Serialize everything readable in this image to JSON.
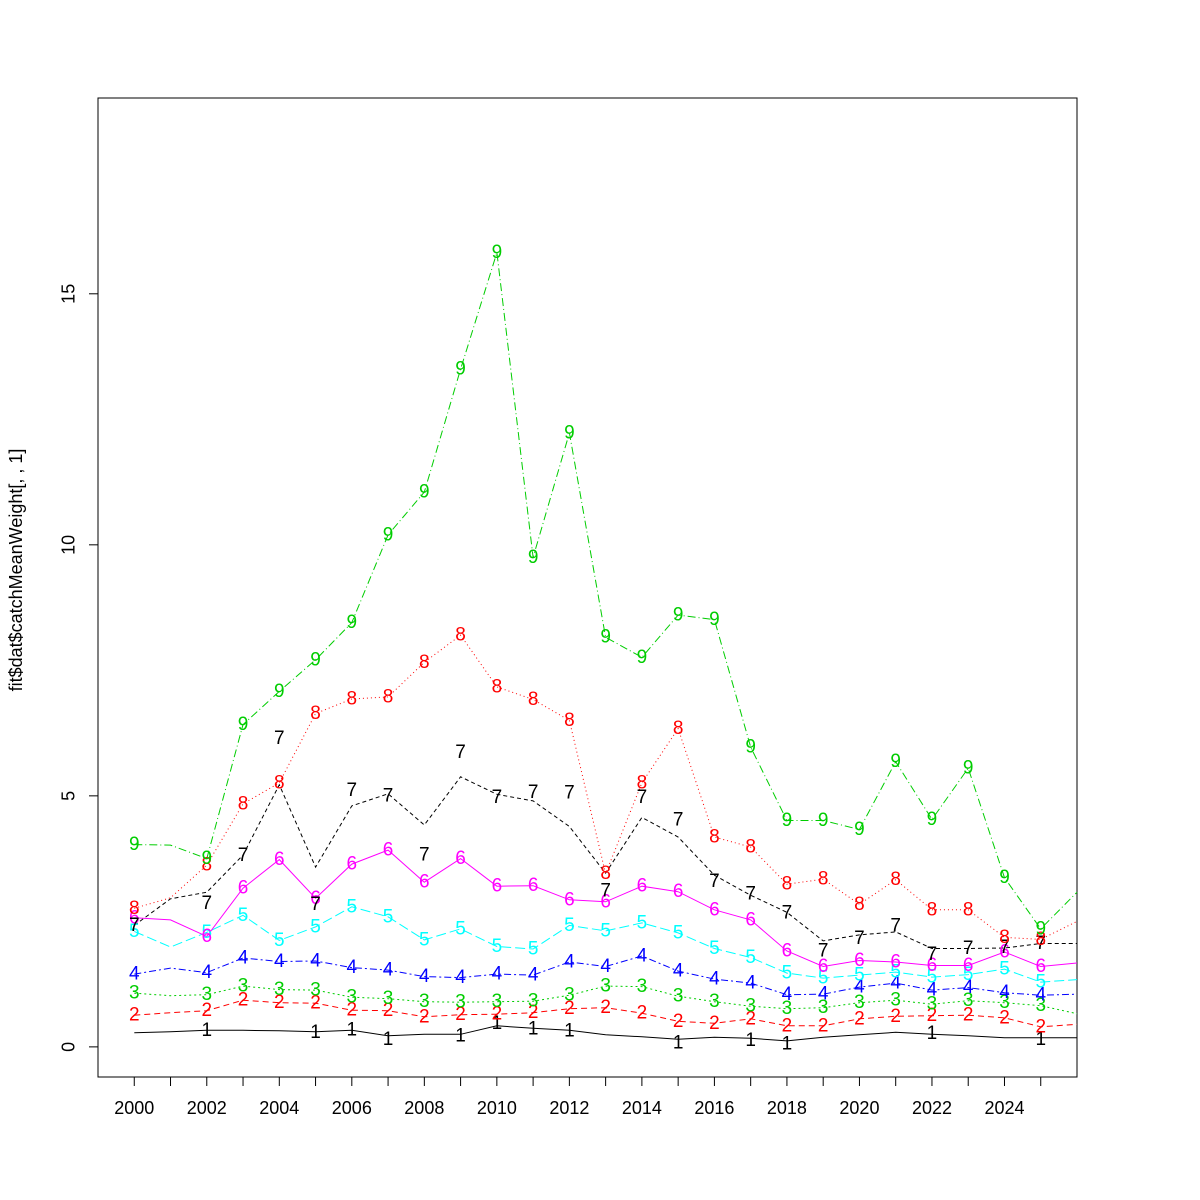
{
  "chart_data": {
    "type": "line",
    "title": "",
    "xlabel": "",
    "ylabel": "fit$dat$catchMeanWeight[, , 1]",
    "xlim": [
      1999.0,
      2026.0
    ],
    "ylim": [
      -0.6,
      18.9
    ],
    "xticks": [
      2000,
      2001,
      2002,
      2003,
      2004,
      2005,
      2006,
      2007,
      2008,
      2009,
      2010,
      2011,
      2012,
      2013,
      2014,
      2015,
      2016,
      2017,
      2018,
      2019,
      2020,
      2021,
      2022,
      2023,
      2024,
      2025
    ],
    "xtick_labels": [
      "2000",
      "",
      "2002",
      "",
      "2004",
      "",
      "2006",
      "",
      "2008",
      "",
      "2010",
      "",
      "2012",
      "",
      "2014",
      "",
      "2016",
      "",
      "2018",
      "",
      "2020",
      "",
      "2022",
      "",
      "2024",
      ""
    ],
    "yticks": [
      0,
      5,
      10,
      15
    ],
    "ytick_labels": [
      "0",
      "5",
      "10",
      "15"
    ],
    "grid": false,
    "line_years": [
      2000,
      2001,
      2002,
      2003,
      2004,
      2005,
      2006,
      2007,
      2008,
      2009,
      2010,
      2011,
      2012,
      2013,
      2014,
      2015,
      2016,
      2017,
      2018,
      2019,
      2020,
      2021,
      2022,
      2023,
      2024,
      2025,
      2026
    ],
    "point_years": [
      2000,
      2002,
      2003,
      2004,
      2005,
      2006,
      2007,
      2008,
      2009,
      2010,
      2011,
      2012,
      2013,
      2014,
      2015,
      2016,
      2017,
      2018,
      2019,
      2020,
      2021,
      2022,
      2023,
      2024,
      2025
    ],
    "series": [
      {
        "name": "1",
        "color": "#000000",
        "dash": "",
        "line": [
          0.28,
          0.3,
          0.33,
          0.33,
          0.32,
          0.3,
          0.33,
          0.22,
          0.25,
          0.25,
          0.42,
          0.37,
          0.33,
          0.24,
          0.2,
          0.15,
          0.19,
          0.17,
          0.12,
          0.19,
          0.24,
          0.29,
          0.25,
          0.22,
          0.18,
          0.18,
          0.18
        ],
        "points": [
          null,
          0.33,
          null,
          null,
          0.29,
          0.34,
          0.15,
          null,
          0.22,
          0.47,
          0.36,
          0.32,
          null,
          null,
          0.08,
          null,
          0.13,
          0.06,
          null,
          null,
          null,
          0.27,
          null,
          null,
          0.15
        ]
      },
      {
        "name": "2",
        "color": "#ff0000",
        "dash": "6,4",
        "line": [
          0.63,
          0.68,
          0.72,
          0.93,
          0.88,
          0.87,
          0.73,
          0.72,
          0.6,
          0.64,
          0.65,
          0.68,
          0.76,
          0.78,
          0.67,
          0.51,
          0.47,
          0.56,
          0.42,
          0.42,
          0.56,
          0.61,
          0.62,
          0.63,
          0.58,
          0.4,
          0.45
        ]
      },
      {
        "name": "3",
        "color": "#00cd00",
        "dash": "2,3",
        "line": [
          1.07,
          1.02,
          1.04,
          1.21,
          1.14,
          1.13,
          0.99,
          0.96,
          0.9,
          0.89,
          0.9,
          0.91,
          1.03,
          1.21,
          1.2,
          1.01,
          0.9,
          0.81,
          0.76,
          0.78,
          0.88,
          0.93,
          0.85,
          0.92,
          0.88,
          0.82,
          0.66
        ]
      },
      {
        "name": "4",
        "color": "#0000ff",
        "dash": "7,3,2,3",
        "line": [
          1.45,
          1.57,
          1.48,
          1.77,
          1.7,
          1.71,
          1.58,
          1.53,
          1.4,
          1.38,
          1.45,
          1.43,
          1.69,
          1.6,
          1.81,
          1.51,
          1.35,
          1.27,
          1.04,
          1.05,
          1.19,
          1.27,
          1.13,
          1.18,
          1.08,
          1.03,
          1.05
        ]
      },
      {
        "name": "5",
        "color": "#00ffff",
        "dash": "10,4",
        "line": [
          2.3,
          1.99,
          2.28,
          2.62,
          2.12,
          2.39,
          2.79,
          2.59,
          2.13,
          2.35,
          2.0,
          1.95,
          2.42,
          2.31,
          2.47,
          2.27,
          1.96,
          1.78,
          1.47,
          1.37,
          1.43,
          1.49,
          1.39,
          1.44,
          1.55,
          1.29,
          1.34
        ]
      },
      {
        "name": "6",
        "color": "#ff00ff",
        "dash": "",
        "line": [
          2.57,
          2.53,
          2.2,
          3.16,
          3.73,
          2.96,
          3.64,
          3.92,
          3.28,
          3.75,
          3.2,
          3.21,
          2.93,
          2.89,
          3.2,
          3.09,
          2.73,
          2.53,
          1.91,
          1.6,
          1.72,
          1.69,
          1.62,
          1.62,
          1.89,
          1.6,
          1.67
        ]
      },
      {
        "name": "7",
        "color": "#000000",
        "dash": "4,3",
        "line": [
          2.42,
          2.95,
          3.08,
          3.82,
          5.22,
          3.58,
          4.8,
          5.04,
          4.42,
          5.38,
          5.03,
          4.9,
          4.39,
          3.46,
          4.57,
          4.18,
          3.42,
          3.02,
          2.68,
          2.11,
          2.23,
          2.29,
          1.96,
          1.96,
          1.97,
          2.06,
          2.06
        ],
        "points": [
          2.42,
          2.86,
          3.81,
          6.14,
          2.84,
          5.11,
          5.0,
          3.82,
          5.86,
          4.97,
          5.07,
          5.06,
          3.1,
          4.97,
          4.52,
          3.29,
          3.05,
          2.67,
          1.91,
          2.16,
          2.41,
          1.84,
          1.96,
          1.98,
          2.06
        ]
      },
      {
        "name": "8",
        "color": "#ff0000",
        "dash": "1,3",
        "line": [
          2.76,
          2.97,
          3.62,
          4.84,
          5.26,
          6.64,
          6.93,
          6.97,
          7.66,
          8.2,
          7.17,
          6.92,
          6.5,
          3.45,
          5.26,
          6.34,
          4.18,
          3.98,
          3.24,
          3.34,
          2.84,
          3.33,
          2.73,
          2.73,
          2.18,
          2.14,
          2.5
        ]
      },
      {
        "name": "9",
        "color": "#00cd00",
        "dash": "8,3,1,3",
        "line": [
          4.03,
          4.02,
          3.75,
          6.42,
          7.08,
          7.71,
          8.45,
          10.2,
          11.05,
          13.5,
          15.82,
          9.75,
          12.23,
          8.16,
          7.76,
          8.6,
          8.51,
          5.97,
          4.51,
          4.51,
          4.33,
          5.68,
          4.53,
          5.55,
          3.37,
          2.35,
          3.08
        ]
      }
    ]
  }
}
